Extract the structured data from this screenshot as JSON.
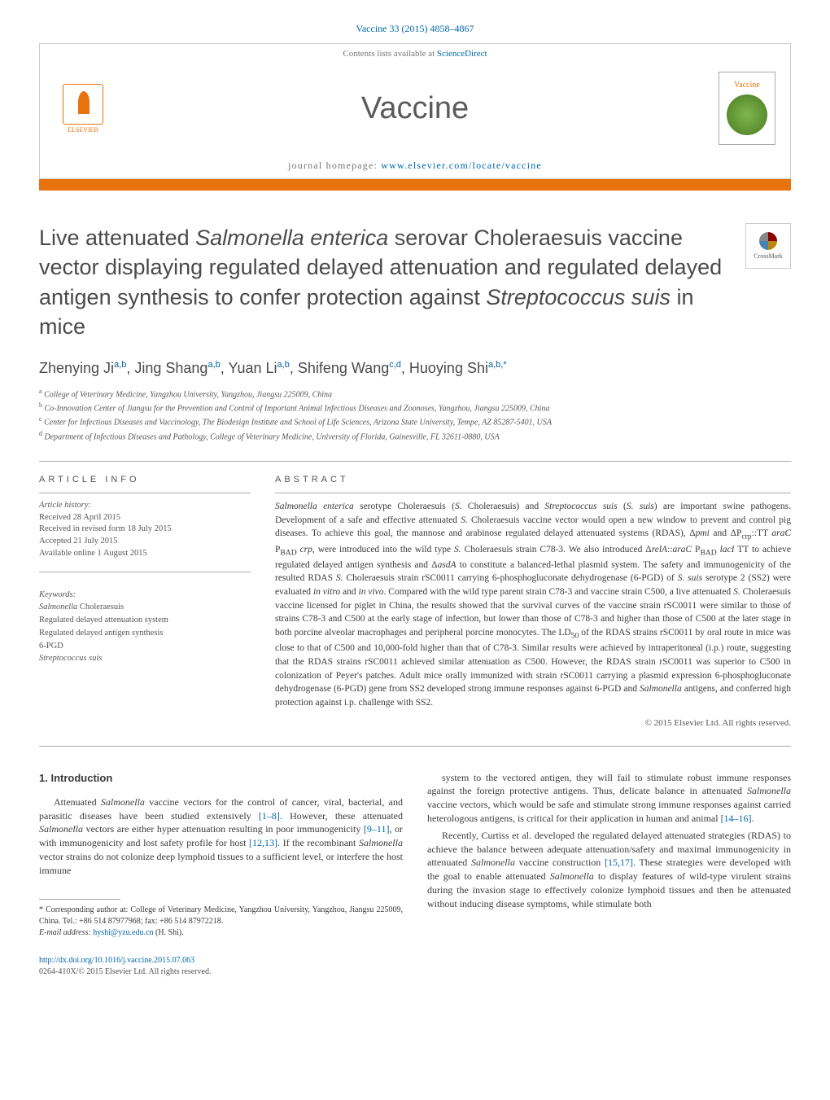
{
  "citation": {
    "journal_link": "Vaccine 33 (2015) 4858–4867"
  },
  "header": {
    "contents_prefix": "Contents lists available at ",
    "contents_link": "ScienceDirect",
    "journal_name": "Vaccine",
    "homepage_prefix": "journal homepage: ",
    "homepage_url": "www.elsevier.com/locate/vaccine",
    "elsevier_label": "ELSEVIER",
    "cover_label": "Vaccine",
    "crossmark_label": "CrossMark"
  },
  "title": "Live attenuated <em>Salmonella enterica</em> serovar Choleraesuis vaccine vector displaying regulated delayed attenuation and regulated delayed antigen synthesis to confer protection against <em>Streptococcus suis</em> in mice",
  "authors_html": "Zhenying Ji<sup><a>a</a>,<a>b</a></sup>, Jing Shang<sup><a>a</a>,<a>b</a></sup>, Yuan Li<sup><a>a</a>,<a>b</a></sup>, Shifeng Wang<sup><a>c</a>,<a>d</a></sup>, Huoying Shi<sup><a>a</a>,<a>b</a>,<a>*</a></sup>",
  "affiliations": [
    {
      "sup": "a",
      "text": "College of Veterinary Medicine, Yangzhou University, Yangzhou, Jiangsu 225009, China"
    },
    {
      "sup": "b",
      "text": "Co-Innovation Center of Jiangsu for the Prevention and Control of Important Animal Infectious Diseases and Zoonoses, Yangzhou, Jiangsu 225009, China"
    },
    {
      "sup": "c",
      "text": "Center for Infectious Diseases and Vaccinology, The Biodesign Institute and School of Life Sciences, Arizona State University, Tempe, AZ 85287-5401, USA"
    },
    {
      "sup": "d",
      "text": "Department of Infectious Diseases and Pathology, College of Veterinary Medicine, University of Florida, Gainesville, FL 32611-0880, USA"
    }
  ],
  "article_info": {
    "label": "ARTICLE INFO",
    "history_label": "Article history:",
    "history_lines": [
      "Received 28 April 2015",
      "Received in revised form 18 July 2015",
      "Accepted 21 July 2015",
      "Available online 1 August 2015"
    ],
    "keywords_label": "Keywords:",
    "keywords": [
      "<em>Salmonella</em> Choleraesuis",
      "Regulated delayed attenuation system",
      "Regulated delayed antigen synthesis",
      "6-PGD",
      "<em>Streptococcus suis</em>"
    ]
  },
  "abstract": {
    "label": "ABSTRACT",
    "text": "<em>Salmonella enterica</em> serotype Choleraesuis (<em>S.</em> Choleraesuis) and <em>Streptococcus suis</em> (<em>S. suis</em>) are important swine pathogens. Development of a safe and effective attenuated <em>S.</em> Choleraesuis vaccine vector would open a new window to prevent and control pig diseases. To achieve this goal, the mannose and arabinose regulated delayed attenuated systems (RDAS), Δ<em>pmi</em> and ΔP<sub>crp</sub>::TT <em>araC</em> P<sub>BAD</sub> <em>crp</em>, were introduced into the wild type <em>S.</em> Choleraesuis strain C78-3. We also introduced Δ<em>relA</em>::<em>araC</em> P<sub>BAD</sub> <em>lacI</em> TT to achieve regulated delayed antigen synthesis and Δ<em>asdA</em> to constitute a balanced-lethal plasmid system. The safety and immunogenicity of the resulted RDAS <em>S.</em> Choleraesuis strain rSC0011 carrying 6-phosphogluconate dehydrogenase (6-PGD) of <em>S. suis</em> serotype 2 (SS2) were evaluated <em>in vitro</em> and <em>in vivo</em>. Compared with the wild type parent strain C78-3 and vaccine strain C500, a live attenuated <em>S.</em> Choleraesuis vaccine licensed for piglet in China, the results showed that the survival curves of the vaccine strain rSC0011 were similar to those of strains C78-3 and C500 at the early stage of infection, but lower than those of C78-3 and higher than those of C500 at the later stage in both porcine alveolar macrophages and peripheral porcine monocytes. The LD<sub>50</sub> of the RDAS strains rSC0011 by oral route in mice was close to that of C500 and 10,000-fold higher than that of C78-3. Similar results were achieved by intraperitoneal (i.p.) route, suggesting that the RDAS strains rSC0011 achieved similar attenuation as C500. However, the RDAS strain rSC0011 was superior to C500 in colonization of Peyer's patches. Adult mice orally immunized with strain rSC0011 carrying a plasmid expression 6-phosphogluconate dehydrogenase (6-PGD) gene from SS2 developed strong immune responses against 6-PGD and <em>Salmonella</em> antigens, and conferred high protection against i.p. challenge with SS2.",
    "copyright": "© 2015 Elsevier Ltd. All rights reserved."
  },
  "intro": {
    "heading": "1.  Introduction",
    "left_html": "Attenuated <em>Salmonella</em> vaccine vectors for the control of cancer, viral, bacterial, and parasitic diseases have been studied extensively <a>[1–8]</a>. However, these attenuated <em>Salmonella</em> vectors are either hyper attenuation resulting in poor immunogenicity <a>[9–11]</a>, or with immunogenicity and lost safety profile for host <a>[12,13]</a>. If the recombinant <em>Salmonella</em> vector strains do not colonize deep lymphoid tissues to a sufficient level, or interfere the host immune",
    "right_p1_html": "system to the vectored antigen, they will fail to stimulate robust immune responses against the foreign protective antigens. Thus, delicate balance in attenuated <em>Salmonella</em> vaccine vectors, which would be safe and stimulate strong immune responses against carried heterologous antigens, is critical for their application in human and animal <a>[14–16]</a>.",
    "right_p2_html": "Recently, Curtiss et al. developed the regulated delayed attenuated strategies (RDAS) to achieve the balance between adequate attenuation/safety and maximal immunogenicity in attenuated <em>Salmonella</em> vaccine construction <a>[15,17]</a>. These strategies were developed with the goal to enable attenuated <em>Salmonella</em> to display features of wild-type virulent strains during the invasion stage to effectively colonize lymphoid tissues and then be attenuated without inducing disease symptoms, while stimulate both"
  },
  "corresp": {
    "text": "* Corresponding author at: College of Veterinary Medicine, Yangzhou University, Yangzhou, Jiangsu 225009, China. Tel.: +86 514 87977968; fax: +86 514 87972218.",
    "email_label": "E-mail address: ",
    "email": "hyshi@yzu.edu.cn",
    "email_suffix": " (H. Shi)."
  },
  "footer": {
    "doi": "http://dx.doi.org/10.1016/j.vaccine.2015.07.063",
    "issn_line": "0264-410X/© 2015 Elsevier Ltd. All rights reserved."
  },
  "colors": {
    "accent": "#e8720e",
    "link": "#0066aa",
    "text": "#3a3a3a",
    "muted": "#555555"
  }
}
